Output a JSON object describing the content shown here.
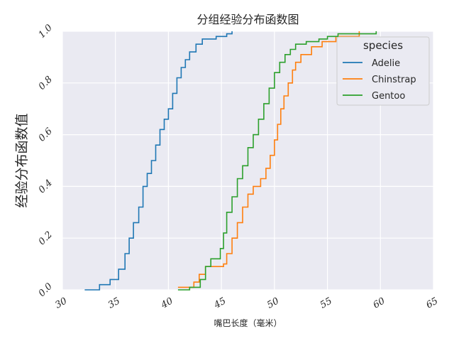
{
  "chart_data": {
    "type": "line",
    "title": "分组经验分布函数图",
    "xlabel": "嘴巴长度（毫米）",
    "ylabel": "经验分布函数值",
    "xlim": [
      30,
      65
    ],
    "ylim": [
      0,
      1
    ],
    "x_ticks": [
      "30",
      "35",
      "40",
      "45",
      "50",
      "55",
      "60",
      "65"
    ],
    "y_ticks": [
      "0.0",
      "0.2",
      "0.4",
      "0.6",
      "0.8",
      "1.0"
    ],
    "grid": true,
    "legend": {
      "title": "species",
      "placement": "top-right"
    },
    "series": [
      {
        "name": "Adelie",
        "color": "#1f77b4",
        "points": [
          [
            32.1,
            0.0
          ],
          [
            33.5,
            0.02
          ],
          [
            34.5,
            0.04
          ],
          [
            35.3,
            0.08
          ],
          [
            35.9,
            0.14
          ],
          [
            36.3,
            0.2
          ],
          [
            36.7,
            0.26
          ],
          [
            37.2,
            0.32
          ],
          [
            37.6,
            0.4
          ],
          [
            38.0,
            0.45
          ],
          [
            38.4,
            0.5
          ],
          [
            38.8,
            0.56
          ],
          [
            39.2,
            0.62
          ],
          [
            39.6,
            0.66
          ],
          [
            40.0,
            0.7
          ],
          [
            40.4,
            0.76
          ],
          [
            40.8,
            0.82
          ],
          [
            41.2,
            0.86
          ],
          [
            41.6,
            0.89
          ],
          [
            42.0,
            0.92
          ],
          [
            42.6,
            0.95
          ],
          [
            43.2,
            0.97
          ],
          [
            44.5,
            0.98
          ],
          [
            45.5,
            0.99
          ],
          [
            46.0,
            1.0
          ]
        ]
      },
      {
        "name": "Chinstrap",
        "color": "#ff7f0e",
        "points": [
          [
            40.9,
            0.01
          ],
          [
            42.4,
            0.03
          ],
          [
            42.9,
            0.06
          ],
          [
            43.5,
            0.09
          ],
          [
            45.2,
            0.1
          ],
          [
            45.5,
            0.14
          ],
          [
            46.0,
            0.2
          ],
          [
            46.5,
            0.26
          ],
          [
            47.0,
            0.32
          ],
          [
            47.5,
            0.37
          ],
          [
            48.0,
            0.4
          ],
          [
            48.7,
            0.43
          ],
          [
            49.2,
            0.47
          ],
          [
            49.6,
            0.52
          ],
          [
            50.0,
            0.58
          ],
          [
            50.3,
            0.64
          ],
          [
            50.6,
            0.7
          ],
          [
            50.9,
            0.75
          ],
          [
            51.3,
            0.8
          ],
          [
            51.7,
            0.85
          ],
          [
            52.0,
            0.88
          ],
          [
            52.5,
            0.91
          ],
          [
            53.5,
            0.94
          ],
          [
            54.5,
            0.96
          ],
          [
            55.8,
            0.98
          ],
          [
            58.0,
            1.0
          ]
        ]
      },
      {
        "name": "Gentoo",
        "color": "#2ca02c",
        "points": [
          [
            40.9,
            0.0
          ],
          [
            42.0,
            0.01
          ],
          [
            43.0,
            0.04
          ],
          [
            43.5,
            0.09
          ],
          [
            44.0,
            0.12
          ],
          [
            44.9,
            0.16
          ],
          [
            45.2,
            0.22
          ],
          [
            45.5,
            0.3
          ],
          [
            46.0,
            0.36
          ],
          [
            46.5,
            0.43
          ],
          [
            47.0,
            0.48
          ],
          [
            47.5,
            0.55
          ],
          [
            48.0,
            0.6
          ],
          [
            48.5,
            0.66
          ],
          [
            49.0,
            0.72
          ],
          [
            49.5,
            0.78
          ],
          [
            50.0,
            0.84
          ],
          [
            50.5,
            0.88
          ],
          [
            51.0,
            0.91
          ],
          [
            51.5,
            0.93
          ],
          [
            52.0,
            0.95
          ],
          [
            53.0,
            0.96
          ],
          [
            54.2,
            0.97
          ],
          [
            55.0,
            0.98
          ],
          [
            56.0,
            0.99
          ],
          [
            59.6,
            1.0
          ]
        ]
      }
    ]
  }
}
